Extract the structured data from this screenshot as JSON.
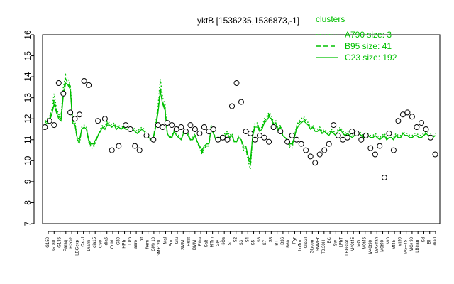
{
  "chart_data": {
    "type": "line",
    "title": "yktB [1536235,1536873,-1]",
    "xlabel": "",
    "ylabel": "",
    "ylim": [
      7,
      16
    ],
    "yticks": [
      7,
      8,
      9,
      10,
      11,
      12,
      13,
      14,
      15,
      16
    ],
    "grid": false,
    "legend_placement": "top-right",
    "legend_title": "clusters",
    "colors": {
      "line": "#00c000",
      "point_stroke": "#000000",
      "point_fill": "#ffffff"
    },
    "x_labels": [
      "G150",
      "G180",
      "G135",
      "Paraq",
      "H2O2",
      "LBGexp",
      "Oxctl",
      "Diami",
      "dia15",
      "C90",
      "dia5",
      "Cold",
      "C30",
      "HPh",
      "LPh",
      "aero",
      "nit",
      "ferm",
      "GM+10",
      "GM+120",
      "Mal",
      "Fru",
      "Glu",
      "SMM",
      "Heat",
      "BMM",
      "Etha",
      "Salt",
      "HiTm",
      "Gly",
      "HiOs",
      "S1",
      "S2",
      "S3",
      "S4",
      "S5",
      "S6",
      "S7",
      "S8",
      "BT",
      "B36",
      "B60",
      "Pyr",
      "LoTm",
      "GlcGI",
      "Glucon",
      "SMMPr",
      "T0.30H",
      "BC",
      "Sw",
      "LPhT",
      "LBGstat",
      "M40t45",
      "MG",
      "M0t45",
      "M40t90",
      "LBGtran",
      "M0t90",
      "Mt0",
      "Mt45",
      "Mt90",
      "MG+45",
      "MG+90",
      "LBtran",
      "Sd",
      "BI",
      "dia0"
    ],
    "series": [
      {
        "name": "A790 size: 3",
        "linestyle": "dotted",
        "x": [
          1,
          2,
          3,
          4,
          5,
          6,
          7,
          8,
          9,
          10,
          11,
          12,
          13,
          14,
          15,
          16,
          17,
          18,
          19,
          20,
          21,
          22,
          23,
          24,
          25,
          26,
          27,
          28,
          29,
          30,
          31,
          32,
          33,
          34,
          35,
          36,
          37,
          38,
          39,
          40,
          41,
          42,
          43,
          44,
          45,
          46,
          47,
          48,
          49,
          50,
          51,
          52,
          53,
          54,
          55,
          56,
          57,
          58,
          59,
          60,
          61,
          62,
          63,
          64,
          65,
          66,
          67,
          68,
          69,
          70,
          71,
          72,
          73,
          74,
          75,
          76,
          77,
          78,
          79,
          80,
          81,
          82,
          83,
          84,
          85,
          86,
          87,
          88,
          89,
          90,
          91,
          92,
          93,
          94,
          95,
          96,
          97,
          98,
          99,
          100,
          101,
          102,
          103,
          104,
          105,
          106,
          107,
          108,
          109,
          110,
          111,
          112,
          113,
          114,
          115,
          116,
          117,
          118,
          119,
          120,
          121,
          122,
          123,
          124,
          125,
          126,
          127,
          128,
          129,
          130,
          131,
          132,
          133,
          134,
          135,
          136,
          137,
          138,
          139,
          140,
          141,
          142,
          143,
          144,
          145,
          146,
          147,
          148,
          149,
          150,
          151,
          152,
          153,
          154,
          155,
          156,
          157,
          158,
          159,
          160,
          161,
          162,
          163,
          164,
          165,
          166,
          167,
          168,
          169,
          170
        ],
        "values": [
          11.9,
          12.0,
          12.1,
          12.4,
          13.2,
          12.5,
          12.2,
          12.1,
          13.5,
          14.1,
          13.9,
          13.6,
          12.0,
          11.9,
          11.0,
          10.8,
          11.6,
          11.7,
          11.6,
          10.9,
          10.6,
          10.6,
          10.9,
          11.2,
          11.5,
          11.7,
          11.6,
          11.9,
          11.8,
          11.7,
          11.8,
          11.6,
          11.7,
          11.5,
          11.7,
          11.6,
          11.6,
          11.5,
          11.6,
          11.5,
          11.4,
          11.5,
          11.6,
          11.5,
          11.3,
          11.1,
          11.0,
          11.1,
          11.8,
          12.6,
          13.9,
          13.0,
          12.7,
          11.3,
          11.1,
          11.2,
          11.5,
          11.3,
          11.2,
          11.0,
          11.4,
          11.5,
          11.3,
          11.0,
          11.1,
          11.3,
          10.9,
          10.6,
          10.3,
          10.6,
          10.7,
          10.7,
          11.7,
          11.4,
          11.0,
          11.0,
          11.2,
          11.1,
          11.3,
          11.4,
          11.2,
          11.3,
          10.9,
          10.9,
          11.2,
          11.0,
          10.5,
          10.6,
          10.0,
          9.6,
          11.3,
          11.8,
          11.8,
          11.5,
          11.6,
          12.0,
          12.1,
          12.3,
          12.2,
          11.8,
          11.9,
          11.5,
          11.7,
          11.2,
          11.1,
          11.0,
          10.6,
          10.6,
          11.1,
          11.7,
          11.9,
          12.0,
          12.1,
          12.0,
          11.8,
          11.6,
          11.7,
          11.5,
          11.5,
          11.6,
          11.4,
          11.5,
          11.4,
          11.3,
          11.5,
          11.4,
          11.3,
          11.5,
          11.6,
          11.4,
          11.3,
          11.4,
          11.3,
          11.2,
          11.3,
          11.3,
          11.4,
          11.3,
          11.2,
          11.3,
          11.3,
          11.2,
          11.2,
          11.3,
          11.2,
          11.1,
          11.2,
          11.3,
          11.1,
          11.2,
          11.2,
          11.1,
          11.3,
          11.2,
          11.2,
          11.4,
          11.3,
          11.3,
          11.2,
          11.2,
          11.3,
          11.3,
          11.2,
          11.2,
          11.3,
          11.4,
          11.3,
          11.3,
          11.2,
          11.3
        ]
      },
      {
        "name": "B95 size: 41",
        "linestyle": "dashed",
        "x": [
          1,
          2,
          3,
          4,
          5,
          6,
          7,
          8,
          9,
          10,
          11,
          12,
          13,
          14,
          15,
          16,
          17,
          18,
          19,
          20,
          21,
          22,
          23,
          24,
          25,
          26,
          27,
          28,
          29,
          30,
          31,
          32,
          33,
          34,
          35,
          36,
          37,
          38,
          39,
          40,
          41,
          42,
          43,
          44,
          45,
          46,
          47,
          48,
          49,
          50,
          51,
          52,
          53,
          54,
          55,
          56,
          57,
          58,
          59,
          60,
          61,
          62,
          63,
          64,
          65,
          66,
          67,
          68,
          69,
          70,
          71,
          72,
          73,
          74,
          75,
          76,
          77,
          78,
          79,
          80,
          81,
          82,
          83,
          84,
          85,
          86,
          87,
          88,
          89,
          90,
          91,
          92,
          93,
          94,
          95,
          96,
          97,
          98,
          99,
          100,
          101,
          102,
          103,
          104,
          105,
          106,
          107,
          108,
          109,
          110,
          111,
          112,
          113,
          114,
          115,
          116,
          117,
          118,
          119,
          120,
          121,
          122,
          123,
          124,
          125,
          126,
          127,
          128,
          129,
          130,
          131,
          132,
          133,
          134,
          135,
          136,
          137,
          138,
          139,
          140,
          141,
          142,
          143,
          144,
          145,
          146,
          147,
          148,
          149,
          150,
          151,
          152,
          153,
          154,
          155,
          156,
          157,
          158,
          159,
          160,
          161,
          162,
          163,
          164,
          165,
          166,
          167,
          168,
          169,
          170
        ],
        "values": [
          11.8,
          11.9,
          12.0,
          12.3,
          12.9,
          12.4,
          12.1,
          12.0,
          13.3,
          13.9,
          13.7,
          13.5,
          11.9,
          11.8,
          11.0,
          10.9,
          11.5,
          11.6,
          11.5,
          10.9,
          10.7,
          10.7,
          10.9,
          11.2,
          11.4,
          11.6,
          11.5,
          11.8,
          11.7,
          11.6,
          11.7,
          11.5,
          11.6,
          11.5,
          11.6,
          11.5,
          11.5,
          11.4,
          11.5,
          11.4,
          11.3,
          11.4,
          11.5,
          11.4,
          11.2,
          11.0,
          11.0,
          11.1,
          11.7,
          12.4,
          13.5,
          12.8,
          12.5,
          11.3,
          11.1,
          11.1,
          11.4,
          11.2,
          11.1,
          11.0,
          11.3,
          11.4,
          11.2,
          11.0,
          11.0,
          11.2,
          10.9,
          10.6,
          10.4,
          10.6,
          10.7,
          10.7,
          11.6,
          11.3,
          11.0,
          11.0,
          11.1,
          11.0,
          11.2,
          11.3,
          11.1,
          11.2,
          10.9,
          10.9,
          11.1,
          11.0,
          10.6,
          10.6,
          10.1,
          9.8,
          11.2,
          11.7,
          11.7,
          11.5,
          11.5,
          11.9,
          12.0,
          12.2,
          12.1,
          11.7,
          11.8,
          11.4,
          11.6,
          11.2,
          11.1,
          11.0,
          10.7,
          10.7,
          11.1,
          11.6,
          11.8,
          11.9,
          12.0,
          11.9,
          11.7,
          11.5,
          11.6,
          11.4,
          11.4,
          11.5,
          11.3,
          11.4,
          11.3,
          11.2,
          11.4,
          11.3,
          11.2,
          11.4,
          11.5,
          11.3,
          11.2,
          11.3,
          11.2,
          11.1,
          11.2,
          11.2,
          11.3,
          11.2,
          11.1,
          11.2,
          11.2,
          11.1,
          11.1,
          11.2,
          11.1,
          11.0,
          11.1,
          11.2,
          11.0,
          11.1,
          11.1,
          11.0,
          11.2,
          11.1,
          11.1,
          11.3,
          11.2,
          11.2,
          11.1,
          11.1,
          11.2,
          11.2,
          11.1,
          11.1,
          11.2,
          11.3,
          11.2,
          11.2,
          11.1,
          11.2
        ]
      },
      {
        "name": "C23 size: 192",
        "linestyle": "solid",
        "x": [
          1,
          2,
          3,
          4,
          5,
          6,
          7,
          8,
          9,
          10,
          11,
          12,
          13,
          14,
          15,
          16,
          17,
          18,
          19,
          20,
          21,
          22,
          23,
          24,
          25,
          26,
          27,
          28,
          29,
          30,
          31,
          32,
          33,
          34,
          35,
          36,
          37,
          38,
          39,
          40,
          41,
          42,
          43,
          44,
          45,
          46,
          47,
          48,
          49,
          50,
          51,
          52,
          53,
          54,
          55,
          56,
          57,
          58,
          59,
          60,
          61,
          62,
          63,
          64,
          65,
          66,
          67,
          68,
          69,
          70,
          71,
          72,
          73,
          74,
          75,
          76,
          77,
          78,
          79,
          80,
          81,
          82,
          83,
          84,
          85,
          86,
          87,
          88,
          89,
          90,
          91,
          92,
          93,
          94,
          95,
          96,
          97,
          98,
          99,
          100,
          101,
          102,
          103,
          104,
          105,
          106,
          107,
          108,
          109,
          110,
          111,
          112,
          113,
          114,
          115,
          116,
          117,
          118,
          119,
          120,
          121,
          122,
          123,
          124,
          125,
          126,
          127,
          128,
          129,
          130,
          131,
          132,
          133,
          134,
          135,
          136,
          137,
          138,
          139,
          140,
          141,
          142,
          143,
          144,
          145,
          146,
          147,
          148,
          149,
          150,
          151,
          152,
          153,
          154,
          155,
          156,
          157,
          158,
          159,
          160,
          161,
          162,
          163,
          164,
          165,
          166,
          167,
          168,
          169,
          170
        ],
        "values": [
          11.7,
          11.8,
          11.9,
          12.2,
          12.7,
          12.3,
          12.0,
          11.9,
          13.1,
          13.7,
          13.6,
          13.4,
          11.8,
          11.7,
          11.1,
          11.0,
          11.5,
          11.6,
          11.5,
          11.0,
          10.8,
          10.8,
          11.0,
          11.2,
          11.4,
          11.6,
          11.5,
          11.7,
          11.7,
          11.6,
          11.7,
          11.5,
          11.6,
          11.5,
          11.6,
          11.5,
          11.5,
          11.4,
          11.5,
          11.4,
          11.3,
          11.4,
          11.5,
          11.4,
          11.2,
          11.1,
          11.0,
          11.1,
          11.6,
          12.3,
          13.3,
          12.7,
          12.4,
          11.3,
          11.1,
          11.1,
          11.4,
          11.2,
          11.1,
          11.0,
          11.3,
          11.4,
          11.2,
          11.0,
          11.0,
          11.2,
          10.9,
          10.7,
          10.5,
          10.7,
          10.8,
          10.8,
          11.5,
          11.3,
          11.0,
          11.0,
          11.1,
          11.0,
          11.2,
          11.3,
          11.1,
          11.2,
          10.9,
          10.9,
          11.1,
          11.0,
          10.7,
          10.7,
          10.2,
          10.0,
          11.2,
          11.6,
          11.6,
          11.4,
          11.5,
          11.8,
          11.9,
          12.1,
          12.0,
          11.7,
          11.8,
          11.4,
          11.6,
          11.2,
          11.1,
          11.0,
          10.8,
          10.8,
          11.1,
          11.5,
          11.7,
          11.8,
          11.9,
          11.8,
          11.7,
          11.5,
          11.6,
          11.4,
          11.4,
          11.5,
          11.3,
          11.4,
          11.3,
          11.2,
          11.4,
          11.3,
          11.2,
          11.4,
          11.5,
          11.3,
          11.2,
          11.3,
          11.2,
          11.1,
          11.2,
          11.2,
          11.3,
          11.2,
          11.1,
          11.2,
          11.2,
          11.1,
          11.1,
          11.2,
          11.1,
          11.0,
          11.1,
          11.2,
          11.0,
          11.1,
          11.1,
          11.0,
          11.2,
          11.1,
          11.1,
          11.3,
          11.2,
          11.2,
          11.1,
          11.1,
          11.2,
          11.2,
          11.1,
          11.1,
          11.2,
          11.3,
          11.2,
          11.2,
          11.1,
          11.2
        ]
      }
    ],
    "points": {
      "x": [
        1,
        3,
        5,
        7,
        9,
        12,
        14,
        16,
        18,
        20,
        24,
        27,
        30,
        33,
        36,
        38,
        40,
        42,
        45,
        48,
        50,
        52,
        54,
        56,
        58,
        60,
        62,
        64,
        66,
        68,
        70,
        72,
        74,
        76,
        78,
        80,
        82,
        84,
        86,
        88,
        90,
        92,
        94,
        96,
        98,
        100,
        103,
        106,
        108,
        110,
        112,
        114,
        116,
        118,
        120,
        122,
        124,
        126,
        128,
        130,
        132,
        134,
        136,
        138,
        140,
        142,
        144,
        146,
        148,
        150,
        152,
        154,
        156,
        158,
        160,
        162,
        164,
        166,
        168,
        170
      ],
      "y": [
        11.6,
        11.9,
        11.7,
        13.7,
        13.2,
        12.3,
        12.0,
        12.2,
        13.8,
        13.6,
        11.9,
        12.0,
        10.5,
        10.7,
        11.7,
        11.5,
        10.7,
        10.5,
        11.2,
        11.0,
        11.7,
        11.6,
        11.8,
        11.7,
        11.5,
        11.6,
        11.4,
        11.7,
        11.5,
        11.3,
        11.6,
        11.4,
        11.5,
        11.0,
        11.1,
        11.0,
        12.6,
        13.7,
        12.8,
        11.4,
        11.3,
        11.0,
        11.2,
        11.1,
        10.9,
        11.6,
        11.4,
        10.9,
        11.2,
        11.0,
        10.8,
        10.5,
        10.2,
        9.9,
        10.3,
        10.5,
        10.8,
        11.7,
        11.2,
        11.0,
        11.1,
        11.4,
        11.3,
        11.0,
        11.2,
        10.6,
        10.3,
        10.7,
        9.2,
        11.3,
        10.5,
        11.9,
        12.2,
        12.3,
        12.1,
        11.6,
        11.8,
        11.5,
        11.1,
        10.3
      ]
    }
  }
}
